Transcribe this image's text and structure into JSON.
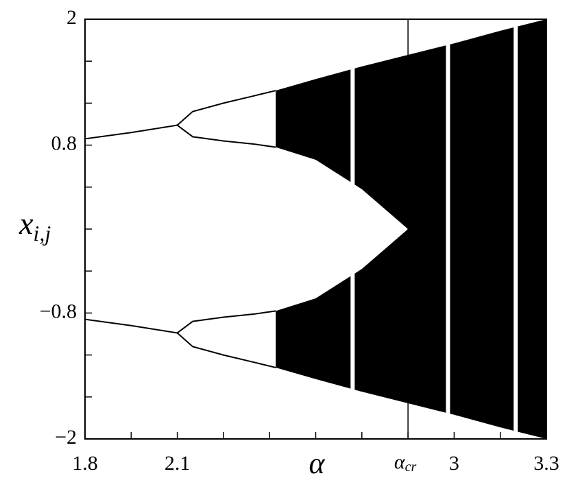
{
  "chart_data": {
    "type": "bifurcation",
    "x_label": "α",
    "y_label": {
      "main": "x",
      "sub": "i,j"
    },
    "xlim": [
      1.8,
      3.3
    ],
    "ylim": [
      -2,
      2
    ],
    "xticks": [
      1.8,
      2.1,
      3,
      3.3
    ],
    "x_minor_ticks": [
      1.95,
      2.25,
      2.4,
      2.55,
      2.7,
      2.85,
      3.15
    ],
    "yticks": [
      {
        "value": -2,
        "label": "−2"
      },
      {
        "value": -0.8,
        "label": "−0.8"
      },
      0.8,
      2
    ],
    "y_minor_ticks": [
      -1.6,
      -1.2,
      -0.4,
      0,
      0.4,
      1.2,
      1.6
    ],
    "annotation": {
      "text": "α",
      "sub": "cr",
      "x": 2.85
    },
    "color": "#000000",
    "curves": [
      {
        "x": [
          1.8,
          1.95,
          2.1
        ],
        "y": [
          0.86,
          0.92,
          0.99
        ]
      },
      {
        "x": [
          1.8,
          1.95,
          2.1
        ],
        "y": [
          -0.86,
          -0.92,
          -0.99
        ]
      },
      {
        "x": [
          2.1,
          2.15,
          2.25,
          2.35,
          2.42
        ],
        "y": [
          0.99,
          1.12,
          1.2,
          1.27,
          1.32
        ]
      },
      {
        "x": [
          2.1,
          2.15,
          2.25,
          2.35,
          2.42
        ],
        "y": [
          0.99,
          0.88,
          0.84,
          0.81,
          0.78
        ]
      },
      {
        "x": [
          2.1,
          2.15,
          2.25,
          2.35,
          2.42
        ],
        "y": [
          -0.99,
          -1.12,
          -1.2,
          -1.27,
          -1.32
        ]
      },
      {
        "x": [
          2.1,
          2.15,
          2.25,
          2.35,
          2.42
        ],
        "y": [
          -0.99,
          -0.88,
          -0.84,
          -0.81,
          -0.78
        ]
      }
    ],
    "bands": [
      {
        "x": [
          2.42,
          2.55,
          2.7,
          2.85,
          3.0,
          3.15,
          3.3
        ],
        "upper": [
          1.32,
          1.43,
          1.55,
          1.66,
          1.77,
          1.89,
          2.0
        ],
        "lower": [
          0.78,
          0.66,
          0.38,
          0,
          0,
          0,
          0
        ]
      },
      {
        "x": [
          2.42,
          2.55,
          2.7,
          2.85,
          3.0,
          3.15,
          3.3
        ],
        "upper": [
          -0.78,
          -0.66,
          -0.38,
          0,
          0,
          0,
          0
        ],
        "lower": [
          -1.32,
          -1.43,
          -1.55,
          -1.66,
          -1.77,
          -1.89,
          -2.0
        ]
      }
    ],
    "windows": [
      2.67,
      2.98,
      3.2
    ]
  }
}
